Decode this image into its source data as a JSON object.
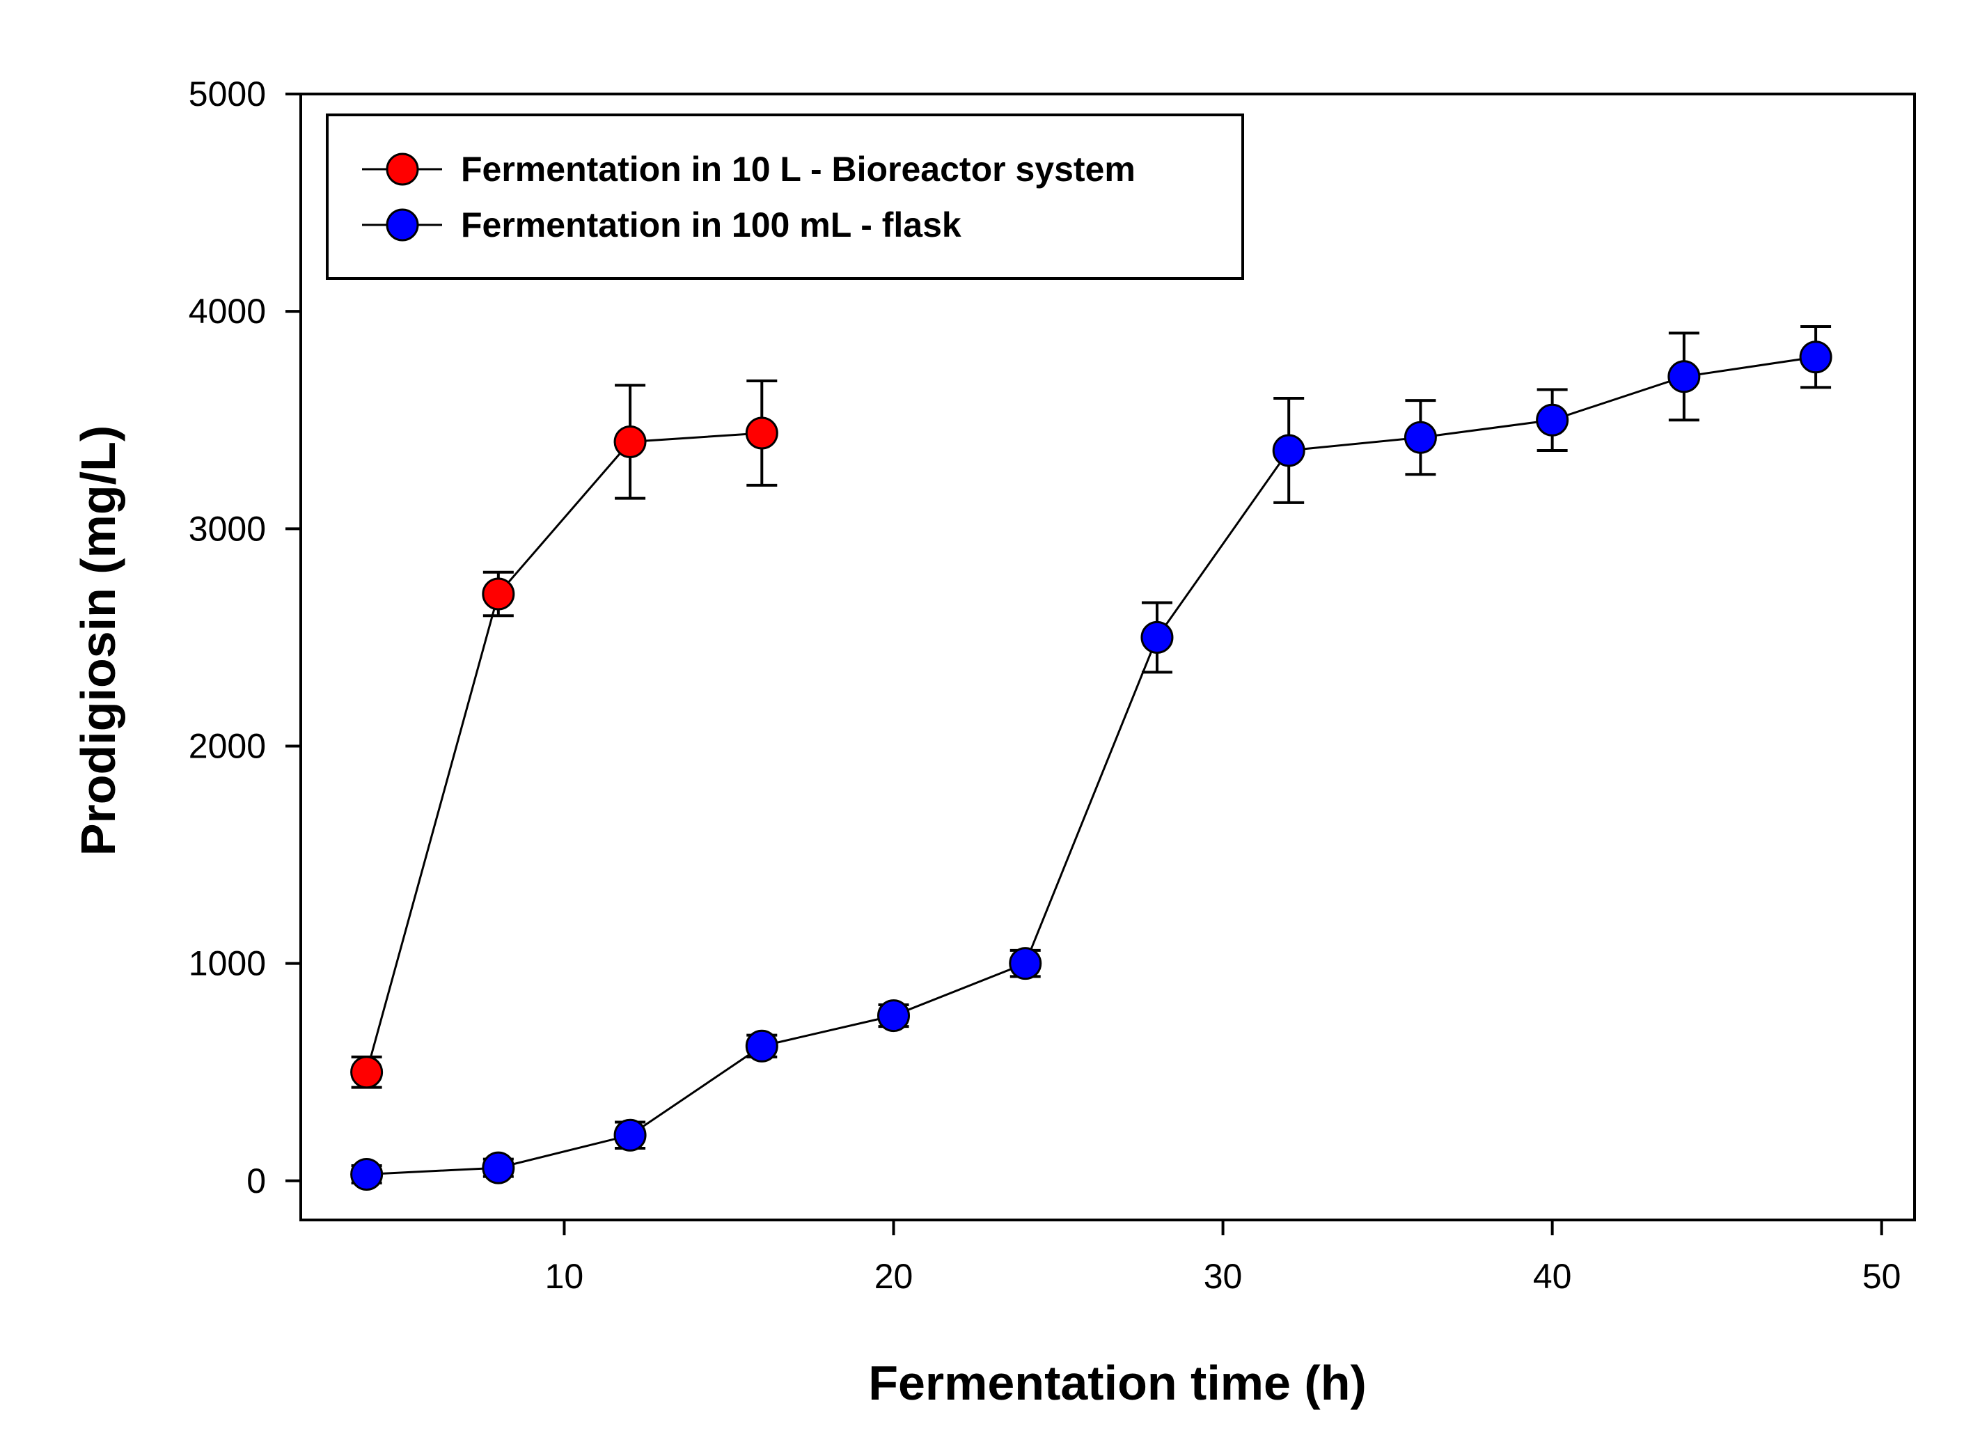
{
  "chart_data": {
    "type": "line",
    "title": "",
    "xlabel": "Fermentation time (h)",
    "ylabel": "Prodigiosin (mg/L)",
    "xlim": [
      2,
      51
    ],
    "ylim": [
      -180,
      5000
    ],
    "xticks": [
      10,
      20,
      30,
      40,
      50
    ],
    "yticks": [
      0,
      1000,
      2000,
      3000,
      4000,
      5000
    ],
    "grid": false,
    "legend_position": "top-left",
    "series": [
      {
        "name": "Fermentation in 10 L - Bioreactor system",
        "color": "#ff0000",
        "x": [
          4,
          8,
          12,
          16
        ],
        "y": [
          500,
          2700,
          3400,
          3440
        ],
        "error": [
          70,
          100,
          260,
          240
        ]
      },
      {
        "name": "Fermentation in 100 mL - flask",
        "color": "#0000ff",
        "x": [
          4,
          8,
          12,
          16,
          20,
          24,
          28,
          32,
          36,
          40,
          44,
          48
        ],
        "y": [
          30,
          60,
          210,
          620,
          760,
          1000,
          2500,
          3360,
          3420,
          3500,
          3700,
          3790
        ],
        "error": [
          40,
          40,
          60,
          50,
          50,
          60,
          160,
          240,
          170,
          140,
          200,
          140
        ]
      }
    ]
  }
}
